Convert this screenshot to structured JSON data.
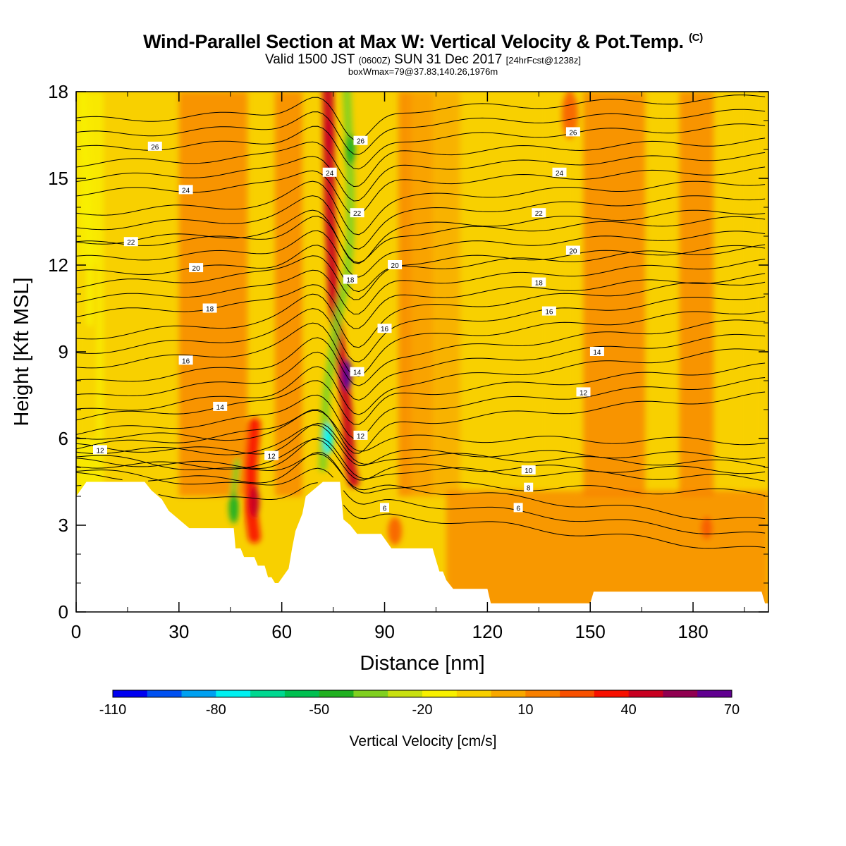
{
  "title": {
    "main": "Wind-Parallel Section at Max W: Vertical Velocity & Pot.Temp.",
    "main_mark": "(C)",
    "valid_prefix": "Valid 1500 JST",
    "valid_zulu": "(0600Z)",
    "valid_date": "SUN 31 Dec 2017",
    "forecast": "[24hrFcst@1238z]",
    "box": "boxWmax=79@37.83,140.26,1976m"
  },
  "colors": {
    "background": "#ffffff",
    "axis": "#000000",
    "contour": "#000000",
    "terrain": "#ffffff"
  },
  "chart_data": {
    "type": "heatmap",
    "xlabel": "Distance [nm]",
    "ylabel": "Height [Kft MSL]",
    "xlim": [
      0,
      202
    ],
    "ylim": [
      0,
      18
    ],
    "xticks": [
      "0",
      "30",
      "60",
      "90",
      "120",
      "150",
      "180"
    ],
    "yticks": [
      "0",
      "3",
      "6",
      "9",
      "12",
      "15",
      "18"
    ],
    "colorbar": {
      "label": "Vertical Velocity [cm/s]",
      "tick_labels": [
        "-110",
        "-80",
        "-50",
        "-20",
        "10",
        "40",
        "70"
      ],
      "colors": [
        "#0000f0",
        "#0050f0",
        "#00a0f0",
        "#00f0f0",
        "#00d890",
        "#00c050",
        "#20b020",
        "#80d020",
        "#c8e010",
        "#f8f000",
        "#f8d000",
        "#f8a800",
        "#f88000",
        "#f85000",
        "#f81000",
        "#c80020",
        "#900050",
        "#600090"
      ]
    },
    "terrain_profile": {
      "x": [
        0,
        3,
        20,
        22,
        25,
        27,
        30,
        33,
        46,
        46.5,
        48,
        49,
        52,
        53,
        55,
        56,
        57,
        58,
        59,
        62,
        63,
        64,
        66,
        67,
        72,
        73,
        77,
        78,
        80,
        82,
        89,
        92,
        104,
        105,
        106,
        107,
        108,
        110,
        120,
        121,
        150,
        151,
        200,
        201,
        202
      ],
      "height_kft": [
        4.0,
        4.5,
        4.5,
        4.2,
        3.9,
        3.5,
        3.2,
        2.9,
        2.9,
        2.2,
        2.2,
        1.9,
        1.9,
        1.6,
        1.6,
        1.2,
        1.2,
        1.0,
        1.0,
        1.5,
        2.2,
        2.8,
        3.4,
        4.0,
        4.5,
        4.5,
        4.5,
        3.2,
        3.0,
        2.7,
        2.7,
        2.2,
        2.2,
        1.8,
        1.4,
        1.4,
        1.1,
        0.8,
        0.8,
        0.3,
        0.3,
        0.7,
        0.7,
        0.3,
        0.3
      ]
    },
    "features": [
      {
        "kind": "updraft",
        "x": 52,
        "y_kft": 3.8,
        "w_cm_s": 40
      },
      {
        "kind": "downdraft",
        "x": 46,
        "y_kft": 3.6,
        "w_cm_s": -50
      },
      {
        "kind": "downdraft",
        "x": 73.5,
        "y_kft": 6.0,
        "w_cm_s": -80
      },
      {
        "kind": "updraft",
        "x": 79,
        "y_kft": 8.2,
        "w_cm_s": 70
      },
      {
        "kind": "downdraft",
        "x": 80,
        "y_kft": 16.0,
        "w_cm_s": -50
      },
      {
        "kind": "updraft",
        "x": 74,
        "y_kft": 16.5,
        "w_cm_s": 40
      },
      {
        "kind": "downdraft",
        "x": 3,
        "y_kft": 14.0,
        "w_cm_s": -20
      }
    ],
    "theta_contours": {
      "units": "C",
      "labels": [
        {
          "text": "12",
          "x": 7,
          "y_kft": 5.6
        },
        {
          "text": "14",
          "x": 42,
          "y_kft": 7.1
        },
        {
          "text": "16",
          "x": 32,
          "y_kft": 8.7
        },
        {
          "text": "18",
          "x": 39,
          "y_kft": 10.5
        },
        {
          "text": "20",
          "x": 35,
          "y_kft": 11.9
        },
        {
          "text": "22",
          "x": 16,
          "y_kft": 12.8
        },
        {
          "text": "24",
          "x": 32,
          "y_kft": 14.6
        },
        {
          "text": "26",
          "x": 23,
          "y_kft": 16.1
        },
        {
          "text": "12",
          "x": 57,
          "y_kft": 5.4
        },
        {
          "text": "24",
          "x": 74,
          "y_kft": 15.2
        },
        {
          "text": "26",
          "x": 83,
          "y_kft": 16.3
        },
        {
          "text": "22",
          "x": 82,
          "y_kft": 13.8
        },
        {
          "text": "18",
          "x": 80,
          "y_kft": 11.5
        },
        {
          "text": "16",
          "x": 90,
          "y_kft": 9.8
        },
        {
          "text": "14",
          "x": 82,
          "y_kft": 8.3
        },
        {
          "text": "12",
          "x": 83,
          "y_kft": 6.1
        },
        {
          "text": "20",
          "x": 93,
          "y_kft": 12.0
        },
        {
          "text": "6",
          "x": 90,
          "y_kft": 3.6
        },
        {
          "text": "10",
          "x": 132,
          "y_kft": 4.9
        },
        {
          "text": "8",
          "x": 132,
          "y_kft": 4.3
        },
        {
          "text": "6",
          "x": 129,
          "y_kft": 3.6
        },
        {
          "text": "26",
          "x": 145,
          "y_kft": 16.6
        },
        {
          "text": "24",
          "x": 141,
          "y_kft": 15.2
        },
        {
          "text": "22",
          "x": 135,
          "y_kft": 13.8
        },
        {
          "text": "20",
          "x": 145,
          "y_kft": 12.5
        },
        {
          "text": "18",
          "x": 135,
          "y_kft": 11.4
        },
        {
          "text": "16",
          "x": 138,
          "y_kft": 10.4
        },
        {
          "text": "14",
          "x": 152,
          "y_kft": 9.0
        },
        {
          "text": "12",
          "x": 148,
          "y_kft": 7.6
        }
      ],
      "levels": [
        {
          "theta": 6,
          "left": 4.4,
          "right": 2.1
        },
        {
          "theta": 8,
          "left": 4.7,
          "right": 4.1
        },
        {
          "theta": 10,
          "left": 5.1,
          "right": 4.9
        },
        {
          "theta": 12,
          "left": 5.7,
          "right": 7.5
        },
        {
          "theta": 14,
          "left": 6.9,
          "right": 9.1
        },
        {
          "theta": 16,
          "left": 8.5,
          "right": 10.5
        },
        {
          "theta": 18,
          "left": 10.3,
          "right": 11.6
        },
        {
          "theta": 20,
          "left": 11.7,
          "right": 12.6
        },
        {
          "theta": 22,
          "left": 12.8,
          "right": 13.9
        },
        {
          "theta": 24,
          "left": 14.5,
          "right": 15.3
        },
        {
          "theta": 26,
          "left": 16.0,
          "right": 16.8
        }
      ]
    }
  }
}
